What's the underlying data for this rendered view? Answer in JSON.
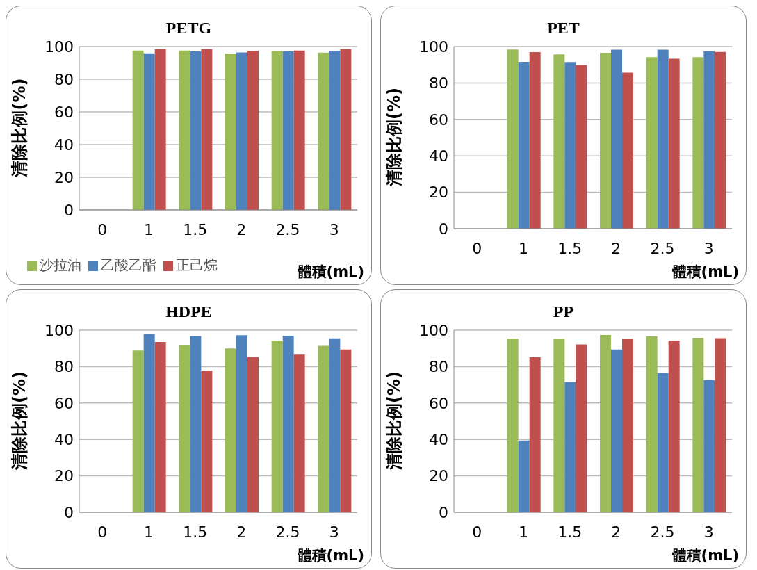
{
  "chart_data": [
    {
      "type": "bar",
      "title": "PETG",
      "xlabel": "體積(mL)",
      "ylabel": "清除比例(%)",
      "categories": [
        "0",
        "1",
        "1.5",
        "2",
        "2.5",
        "3"
      ],
      "series": [
        {
          "name": "沙拉油",
          "color": "#9bbb59",
          "values": [
            null,
            97.6,
            97.6,
            95.6,
            97.2,
            96.3
          ]
        },
        {
          "name": "乙酸乙酯",
          "color": "#4f81bd",
          "values": [
            null,
            95.9,
            97.0,
            96.4,
            97.0,
            97.3
          ]
        },
        {
          "name": "正己烷",
          "color": "#c0504d",
          "values": [
            null,
            98.4,
            98.4,
            97.3,
            97.6,
            98.4
          ]
        }
      ],
      "ylim": [
        0,
        100
      ],
      "yticks": [
        0,
        20,
        40,
        60,
        80,
        100
      ],
      "grid": "y",
      "legend": "bottom left"
    },
    {
      "type": "bar",
      "title": "PET",
      "xlabel": "體積(mL)",
      "ylabel": "清除比例(%)",
      "categories": [
        "0",
        "1",
        "1.5",
        "2",
        "2.5",
        "3"
      ],
      "series": [
        {
          "color": "#9bbb59",
          "values": [
            null,
            98.4,
            95.7,
            96.6,
            94.2,
            94.2
          ]
        },
        {
          "color": "#4f81bd",
          "values": [
            null,
            91.6,
            91.5,
            98.3,
            98.3,
            97.4
          ]
        },
        {
          "color": "#c0504d",
          "values": [
            null,
            96.9,
            89.8,
            85.7,
            93.3,
            97.0
          ]
        }
      ],
      "ylim": [
        0,
        100
      ],
      "yticks": [
        0,
        20,
        40,
        60,
        80,
        100
      ],
      "grid": "y"
    },
    {
      "type": "bar",
      "title": "HDPE",
      "xlabel": "體積(mL)",
      "ylabel": "清除比例(%)",
      "categories": [
        "0",
        "1",
        "1.5",
        "2",
        "2.5",
        "3"
      ],
      "series": [
        {
          "color": "#9bbb59",
          "values": [
            null,
            88.8,
            91.9,
            90.0,
            94.3,
            91.4
          ]
        },
        {
          "color": "#4f81bd",
          "values": [
            null,
            98.0,
            96.8,
            97.2,
            96.9,
            95.5
          ]
        },
        {
          "color": "#c0504d",
          "values": [
            null,
            93.5,
            77.8,
            85.3,
            86.9,
            89.4
          ]
        }
      ],
      "ylim": [
        0,
        100
      ],
      "yticks": [
        0,
        20,
        40,
        60,
        80,
        100
      ],
      "grid": "y"
    },
    {
      "type": "bar",
      "title": "PP",
      "xlabel": "體積(mL)",
      "ylabel": "清除比例(%)",
      "categories": [
        "0",
        "1",
        "1.5",
        "2",
        "2.5",
        "3"
      ],
      "series": [
        {
          "color": "#9bbb59",
          "values": [
            null,
            95.4,
            95.2,
            97.3,
            96.6,
            95.8
          ]
        },
        {
          "color": "#4f81bd",
          "values": [
            null,
            39.4,
            71.5,
            89.4,
            76.5,
            72.6
          ]
        },
        {
          "color": "#c0504d",
          "values": [
            null,
            85.1,
            92.2,
            95.2,
            94.3,
            95.6
          ]
        }
      ],
      "ylim": [
        0,
        100
      ],
      "yticks": [
        0,
        20,
        40,
        60,
        80,
        100
      ],
      "grid": "y"
    }
  ]
}
